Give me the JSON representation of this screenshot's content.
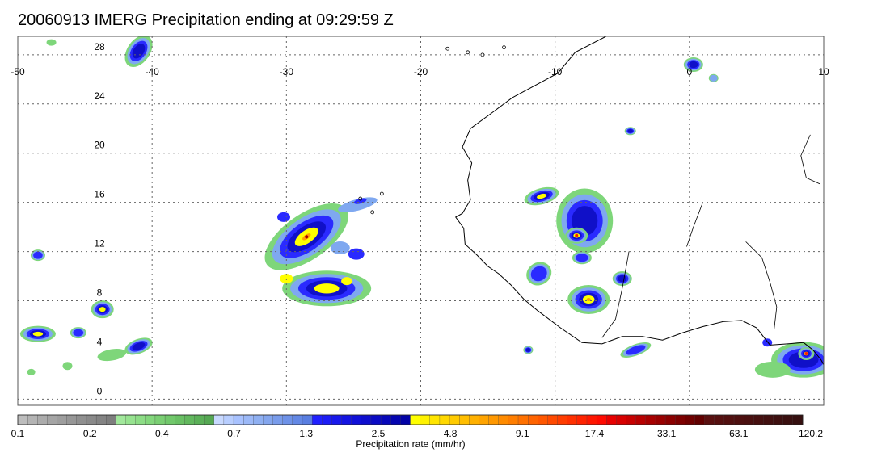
{
  "title": "20060913 IMERG Precipitation ending at 09:29:59 Z",
  "map": {
    "lon_ticks": [
      "-50",
      "-40",
      "-30",
      "-20",
      "-10",
      "0",
      "10"
    ],
    "lat_ticks": [
      "0",
      "4",
      "8",
      "12",
      "16",
      "20",
      "24",
      "28"
    ],
    "lon_range": [
      -50,
      10
    ],
    "lat_range": [
      -0.5,
      29.5
    ],
    "gridlines": true
  },
  "colorbar": {
    "label": "Precipitation rate (mm/hr)",
    "tick_labels": [
      "0.1",
      "0.2",
      "0.4",
      "0.7",
      "1.3",
      "2.5",
      "4.8",
      "9.1",
      "17.4",
      "33.1",
      "63.1",
      "120.2"
    ],
    "colors": [
      "#bdbdbd",
      "#b4b4b4",
      "#acacac",
      "#a5a5a5",
      "#9e9e9e",
      "#979797",
      "#909090",
      "#8a8a8a",
      "#848484",
      "#7e7e7e",
      "#a2e89c",
      "#97e390",
      "#8ddd86",
      "#83d77c",
      "#7acf73",
      "#71c86b",
      "#69c064",
      "#62b85e",
      "#5bb058",
      "#55a853",
      "#c8d9ff",
      "#b8ceff",
      "#a8c2ff",
      "#9cb9f8",
      "#8fb0f2",
      "#84a6ee",
      "#799ceb",
      "#6e92e8",
      "#6388e5",
      "#597ee1",
      "#2020ff",
      "#1c1cf6",
      "#1818ec",
      "#1414e2",
      "#1010d8",
      "#0e0ece",
      "#0b0bc4",
      "#0808ba",
      "#0505b0",
      "#0303a6",
      "#ffff00",
      "#fff200",
      "#ffe500",
      "#ffd800",
      "#ffcb00",
      "#ffbe00",
      "#ffb100",
      "#ffa400",
      "#ff9800",
      "#ff8b00",
      "#ff7e00",
      "#ff7100",
      "#ff6400",
      "#ff5700",
      "#ff4a00",
      "#ff3d00",
      "#ff3000",
      "#ff2300",
      "#ff1600",
      "#ff0a00",
      "#e80000",
      "#d80000",
      "#c80000",
      "#b80000",
      "#a80000",
      "#9a0000",
      "#8c0000",
      "#7e0000",
      "#700000",
      "#620000",
      "#5a1010",
      "#561010",
      "#521010",
      "#4e1010",
      "#4a1010",
      "#461010",
      "#421010",
      "#3e1010",
      "#3a1010",
      "#361010"
    ]
  }
}
